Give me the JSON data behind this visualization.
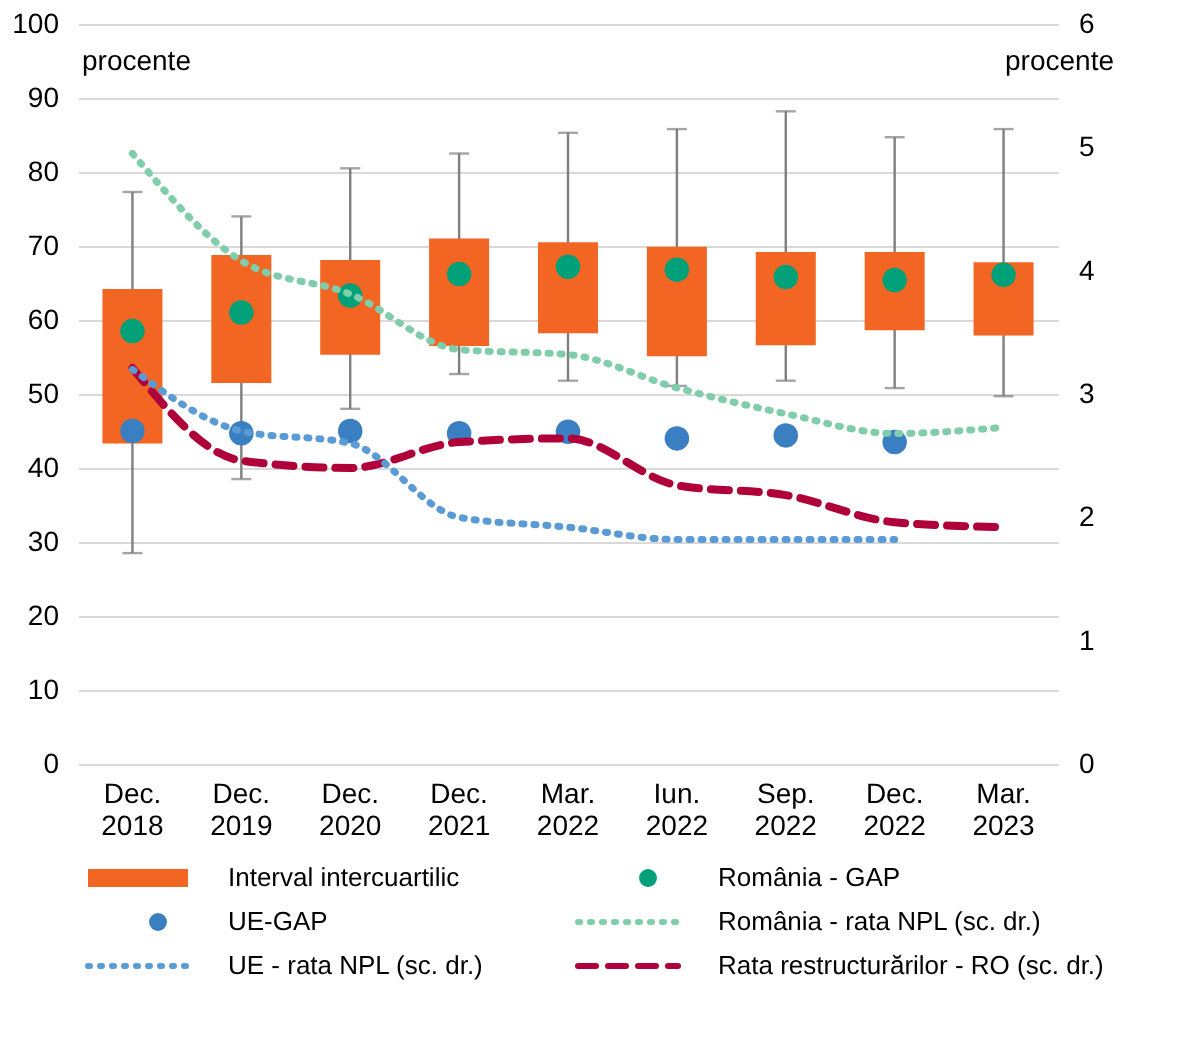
{
  "chart_data": {
    "type": "box",
    "categories": [
      "Dec. 2018",
      "Dec. 2019",
      "Dec. 2020",
      "Dec. 2021",
      "Mar. 2022",
      "Iun. 2022",
      "Sep. 2022",
      "Dec. 2022",
      "Mar. 2023"
    ],
    "series": [
      {
        "name": "Interval intercuartilic",
        "color": "#f26522",
        "boxes": [
          {
            "low": 28.5,
            "q1": 43.3,
            "q3": 64.2,
            "high": 77.3
          },
          {
            "low": 38.5,
            "q1": 51.5,
            "q3": 68.8,
            "high": 74.0
          },
          {
            "low": 48.0,
            "q1": 55.3,
            "q3": 68.1,
            "high": 80.5
          },
          {
            "low": 52.7,
            "q1": 56.5,
            "q3": 71.0,
            "high": 82.5
          },
          {
            "low": 51.8,
            "q1": 58.2,
            "q3": 70.5,
            "high": 85.3
          },
          {
            "low": 51.1,
            "q1": 55.1,
            "q3": 69.9,
            "high": 85.8
          },
          {
            "low": 51.8,
            "q1": 56.6,
            "q3": 69.2,
            "high": 88.2
          },
          {
            "low": 50.8,
            "q1": 58.6,
            "q3": 69.2,
            "high": 84.7
          },
          {
            "low": 49.7,
            "q1": 57.9,
            "q3": 67.8,
            "high": 85.8
          }
        ]
      },
      {
        "name": "România - GAP",
        "type": "scatter",
        "color": "#00a078",
        "values": [
          58.5,
          61.0,
          63.3,
          66.2,
          67.2,
          66.8,
          65.8,
          65.4,
          66.1
        ]
      },
      {
        "name": "UE-GAP",
        "type": "scatter",
        "color": "#3a7fc1",
        "values": [
          45.0,
          44.7,
          45.0,
          44.7,
          44.9,
          44.0,
          44.4,
          43.5,
          null
        ]
      },
      {
        "name": "România - rata NPL (sc. dr.)",
        "type": "line",
        "axis": "y2",
        "line_style": "dotted",
        "color": "#7fcdaa",
        "values": [
          4.95,
          4.08,
          3.81,
          3.36,
          3.32,
          3.05,
          2.84,
          2.68,
          2.73
        ]
      },
      {
        "name": "UE - rata NPL (sc. dr.)",
        "type": "line",
        "axis": "y2",
        "line_style": "dotted",
        "color": "#5b9bd5",
        "values": [
          3.2,
          2.7,
          2.6,
          2.0,
          1.92,
          1.82,
          1.82,
          1.82,
          null
        ]
      },
      {
        "name": "Rata restructurărilor - RO (sc. dr.)",
        "type": "line",
        "axis": "y2",
        "line_style": "dashed",
        "color": "#b0003a",
        "values": [
          3.21,
          2.46,
          2.4,
          2.61,
          2.64,
          2.26,
          2.18,
          1.96,
          1.92
        ]
      }
    ],
    "ylim": [
      0,
      100
    ],
    "yticks": [
      0,
      10,
      20,
      30,
      40,
      50,
      60,
      70,
      80,
      90,
      100
    ],
    "y2lim": [
      0,
      6
    ],
    "y2ticks": [
      0,
      1,
      2,
      3,
      4,
      5,
      6
    ],
    "grid": "y",
    "legend": "bottom",
    "annotations": [
      "procente",
      "procente"
    ]
  }
}
